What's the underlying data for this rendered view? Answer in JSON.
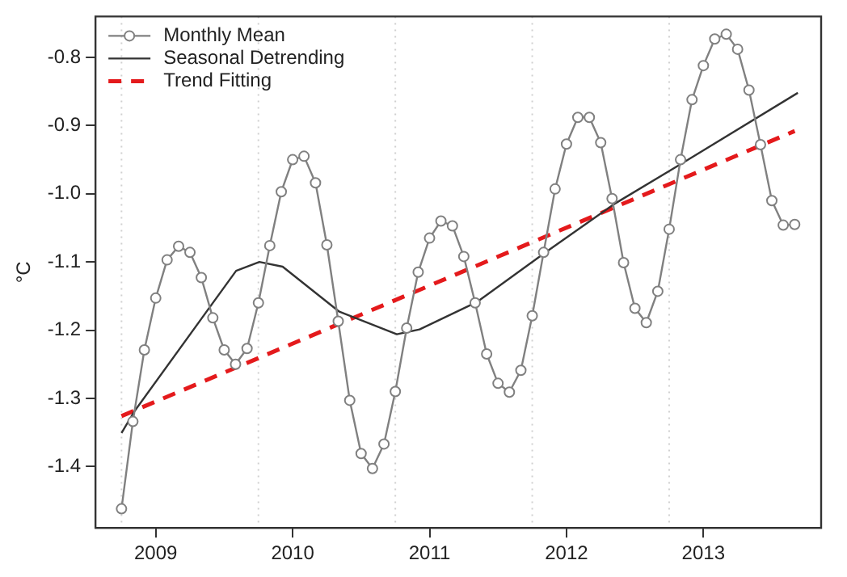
{
  "chart_data": {
    "type": "line",
    "ylabel": "°C",
    "xlim": [
      2008.56,
      2013.86
    ],
    "xticks": [
      2009,
      2010,
      2011,
      2012,
      2013
    ],
    "ylim": [
      -1.49,
      -0.74
    ],
    "yticks": [
      {
        "value": -1.4,
        "label": "-1.4"
      },
      {
        "value": -1.3,
        "label": "-1.3"
      },
      {
        "value": -1.2,
        "label": "-1.2"
      },
      {
        "value": -1.1,
        "label": "-1.1"
      },
      {
        "value": -1,
        "label": "-1.0"
      },
      {
        "value": -0.9,
        "label": "-0.9"
      },
      {
        "value": -0.8,
        "label": "-0.8"
      }
    ],
    "legend": "top left",
    "grid": false,
    "ref_lines": [
      {
        "axis": "x",
        "value": 2008.75,
        "line_style": "dotted",
        "color": "#d0d0d0"
      },
      {
        "axis": "x",
        "value": 2009.75,
        "line_style": "dotted",
        "color": "#d0d0d0"
      },
      {
        "axis": "x",
        "value": 2010.75,
        "line_style": "dotted",
        "color": "#d0d0d0"
      },
      {
        "axis": "x",
        "value": 2011.75,
        "line_style": "dotted",
        "color": "#d0d0d0"
      },
      {
        "axis": "x",
        "value": 2012.75,
        "line_style": "dotted",
        "color": "#d0d0d0"
      }
    ],
    "series": [
      {
        "name": "Monthly Mean",
        "color": "#808080",
        "marker": "circle",
        "line_style": "solid",
        "x": [
          2008.75,
          2008.833,
          2008.917,
          2009,
          2009.083,
          2009.167,
          2009.25,
          2009.333,
          2009.417,
          2009.5,
          2009.583,
          2009.667,
          2009.75,
          2009.833,
          2009.917,
          2010,
          2010.083,
          2010.167,
          2010.25,
          2010.333,
          2010.417,
          2010.5,
          2010.583,
          2010.667,
          2010.75,
          2010.833,
          2010.917,
          2011,
          2011.083,
          2011.167,
          2011.25,
          2011.333,
          2011.417,
          2011.5,
          2011.583,
          2011.667,
          2011.75,
          2011.833,
          2011.917,
          2012,
          2012.083,
          2012.167,
          2012.25,
          2012.333,
          2012.417,
          2012.5,
          2012.583,
          2012.667,
          2012.75,
          2012.833,
          2012.917,
          2013,
          2013.083,
          2013.167,
          2013.25,
          2013.333,
          2013.417,
          2013.5,
          2013.583,
          2013.667
        ],
        "values": [
          -1.462,
          -1.334,
          -1.229,
          -1.153,
          -1.097,
          -1.077,
          -1.086,
          -1.123,
          -1.182,
          -1.229,
          -1.25,
          -1.227,
          -1.16,
          -1.076,
          -0.997,
          -0.95,
          -0.945,
          -0.984,
          -1.075,
          -1.187,
          -1.303,
          -1.381,
          -1.403,
          -1.367,
          -1.29,
          -1.197,
          -1.115,
          -1.065,
          -1.04,
          -1.047,
          -1.092,
          -1.16,
          -1.235,
          -1.278,
          -1.291,
          -1.259,
          -1.179,
          -1.086,
          -0.993,
          -0.927,
          -0.888,
          -0.888,
          -0.925,
          -1.007,
          -1.101,
          -1.168,
          -1.189,
          -1.143,
          -1.052,
          -0.95,
          -0.862,
          -0.812,
          -0.773,
          -0.766,
          -0.788,
          -0.848,
          -0.928,
          -1.01,
          -1.046,
          -1.045
        ]
      },
      {
        "name": "Seasonal Detrending",
        "color": "#333333",
        "marker": "none",
        "line_style": "solid",
        "x": [
          2008.75,
          2008.841,
          2009.587,
          2009.757,
          2009.927,
          2010.341,
          2010.761,
          2010.927,
          2011.344,
          2011.847,
          2012.349,
          2012.855,
          2013.69
        ],
        "values": [
          -1.351,
          -1.32,
          -1.113,
          -1.1,
          -1.107,
          -1.173,
          -1.206,
          -1.199,
          -1.159,
          -1.086,
          -1.015,
          -0.954,
          -0.852
        ]
      },
      {
        "name": "Trend Fitting",
        "color": "#e41a1c",
        "marker": "none",
        "line_style": "dashed",
        "x": [
          2008.75,
          2013.667
        ],
        "values": [
          -1.326,
          -0.908
        ]
      }
    ]
  }
}
